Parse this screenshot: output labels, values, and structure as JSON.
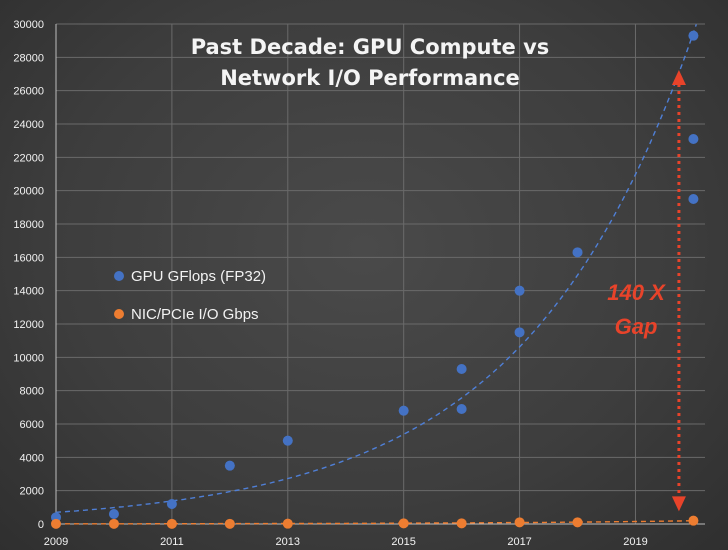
{
  "chart_data": {
    "type": "scatter",
    "title_lines": [
      "Past Decade: GPU Compute vs",
      "Network I/O Performance"
    ],
    "xlabel": "",
    "ylabel": "",
    "xlim": [
      2009,
      2020.2
    ],
    "ylim": [
      0,
      30000
    ],
    "x_ticks": [
      2009,
      2011,
      2013,
      2015,
      2017,
      2019
    ],
    "y_ticks": [
      0,
      2000,
      4000,
      6000,
      8000,
      10000,
      12000,
      14000,
      16000,
      18000,
      20000,
      22000,
      24000,
      26000,
      28000,
      30000
    ],
    "grid": true,
    "legend_position": "left",
    "series": [
      {
        "name": "GPU GFlops (FP32)",
        "color": "#4472c4",
        "points": [
          [
            2009,
            400
          ],
          [
            2010,
            600
          ],
          [
            2011,
            1200
          ],
          [
            2012,
            3500
          ],
          [
            2013,
            5000
          ],
          [
            2015,
            6800
          ],
          [
            2016,
            9300
          ],
          [
            2016,
            6900
          ],
          [
            2017,
            14000
          ],
          [
            2017,
            11500
          ],
          [
            2018,
            16300
          ],
          [
            2020,
            29300
          ],
          [
            2020,
            23100
          ],
          [
            2020,
            19500
          ]
        ],
        "trendline": {
          "type": "exponential",
          "a": 700,
          "b": 0.34,
          "x0": 2009,
          "color": "#4f7fd6"
        }
      },
      {
        "name": "NIC/PCIe I/O Gbps",
        "color": "#ed7d31",
        "points": [
          [
            2009,
            10
          ],
          [
            2010,
            10
          ],
          [
            2011,
            10
          ],
          [
            2012,
            10
          ],
          [
            2013,
            20
          ],
          [
            2015,
            40
          ],
          [
            2016,
            40
          ],
          [
            2017,
            100
          ],
          [
            2018,
            100
          ],
          [
            2020,
            200
          ]
        ],
        "trendline": {
          "type": "exponential",
          "a": 10,
          "b": 0.27,
          "x0": 2009,
          "color": "#ed7d31"
        }
      }
    ],
    "annotation": {
      "lines": [
        "140 X",
        "Gap"
      ],
      "color": "#e8432a",
      "x": 2019.75,
      "y_from": 27000,
      "y_to": 1000
    }
  }
}
